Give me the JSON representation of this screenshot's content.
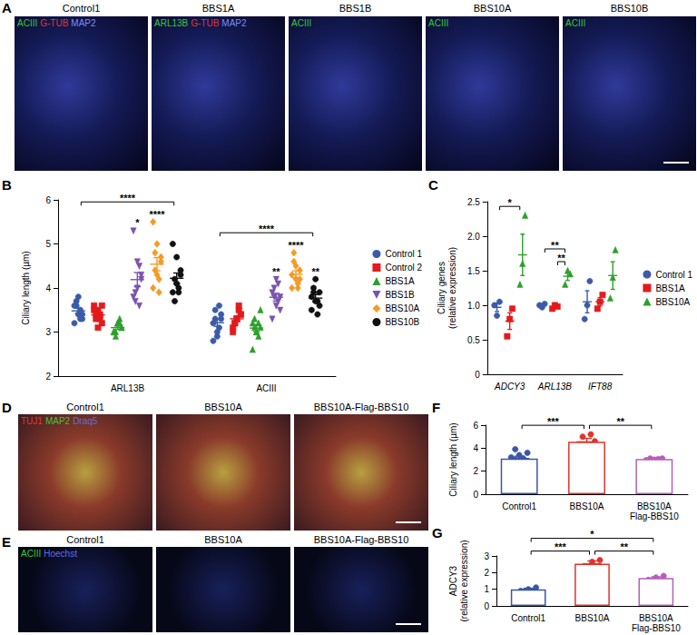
{
  "chart_data": [
    {
      "panel": "B",
      "type": "scatter",
      "categories": [
        "ARL13B",
        "ACIII"
      ],
      "y_label": "Ciliary length (µm)",
      "ylim": [
        2,
        6
      ],
      "yticks": [
        2,
        3,
        4,
        5,
        6
      ],
      "grid": false,
      "legend": "right",
      "series": [
        {
          "name": "Control 1",
          "color": "#3b5ba9",
          "marker": "circle",
          "values": [
            [
              3.6,
              3.4,
              3.3,
              3.7,
              3.5,
              3.2,
              3.8,
              3.4,
              3.6,
              3.3
            ],
            [
              2.8,
              3.0,
              3.3,
              3.5,
              3.1,
              3.2,
              2.9,
              3.4,
              3.3,
              3.6
            ]
          ],
          "mean": [
            3.48,
            3.21
          ],
          "sem": [
            0.06,
            0.08
          ]
        },
        {
          "name": "Control 2",
          "color": "#e41a1c",
          "marker": "square",
          "values": [
            [
              3.6,
              3.5,
              3.2,
              3.3,
              3.4,
              3.5,
              3.1,
              3.6,
              3.4,
              3.3
            ],
            [
              3.0,
              3.3,
              3.4,
              3.2,
              3.5,
              3.1,
              3.3,
              3.4,
              3.2,
              3.6
            ]
          ],
          "mean": [
            3.39,
            3.3
          ],
          "sem": [
            0.05,
            0.06
          ]
        },
        {
          "name": "BBS1A",
          "color": "#2ca02c",
          "marker": "triangle",
          "values": [
            [
              3.0,
              3.2,
              3.1,
              2.9,
              3.3,
              3.0,
              3.2,
              3.1,
              3.0,
              3.2
            ],
            [
              2.6,
              3.0,
              3.1,
              3.3,
              2.9,
              3.2,
              3.0,
              3.5,
              3.1,
              3.2
            ]
          ],
          "mean": [
            3.1,
            3.09
          ],
          "sem": [
            0.04,
            0.08
          ]
        },
        {
          "name": "BBS1B",
          "color": "#7b52ae",
          "marker": "triangle-down",
          "values": [
            [
              5.3,
              4.6,
              4.3,
              3.9,
              3.6,
              3.8,
              4.0,
              4.2,
              3.7,
              4.5
            ],
            [
              3.3,
              3.6,
              3.8,
              4.0,
              3.7,
              3.9,
              4.2,
              3.5,
              3.8,
              4.1
            ]
          ],
          "mean": [
            4.19,
            3.79
          ],
          "sem": [
            0.16,
            0.09
          ]
        },
        {
          "name": "BBS10A",
          "color": "#f59a23",
          "marker": "diamond",
          "values": [
            [
              5.5,
              5.0,
              4.7,
              4.4,
              4.2,
              4.0,
              4.3,
              4.6,
              4.8,
              3.9
            ],
            [
              4.0,
              4.2,
              4.4,
              4.6,
              4.1,
              4.3,
              4.5,
              4.2,
              4.8,
              4.0
            ]
          ],
          "mean": [
            4.54,
            4.31
          ],
          "sem": [
            0.15,
            0.08
          ]
        },
        {
          "name": "BBS10B",
          "color": "#111111",
          "marker": "circle",
          "values": [
            [
              5.0,
              4.7,
              4.4,
              4.2,
              4.0,
              3.9,
              4.1,
              4.3,
              3.7,
              3.9
            ],
            [
              3.5,
              3.7,
              3.9,
              4.0,
              3.4,
              3.8,
              4.2,
              3.6,
              3.9,
              3.7
            ]
          ],
          "mean": [
            4.22,
            3.77
          ],
          "sem": [
            0.12,
            0.08
          ]
        }
      ],
      "annotations": [
        {
          "text": "****",
          "group": "ARL13B",
          "from": "Control 1",
          "to": "BBS10B"
        },
        {
          "text": "****",
          "group": "ACIII",
          "from": "Control 1",
          "to": "BBS10B"
        },
        {
          "text": "*",
          "group": "ARL13B",
          "series": "BBS1B"
        },
        {
          "text": "****",
          "group": "ARL13B",
          "series": "BBS10A"
        },
        {
          "text": "**",
          "group": "ACIII",
          "series": "BBS1B"
        },
        {
          "text": "****",
          "group": "ACIII",
          "series": "BBS10A"
        },
        {
          "text": "**",
          "group": "ACIII",
          "series": "BBS10B"
        }
      ]
    },
    {
      "panel": "C",
      "type": "scatter",
      "categories": [
        "ADCY3",
        "ARL13B",
        "IFT88"
      ],
      "y_label": "Ciliary genes\n(relative expression)",
      "ylim": [
        0,
        2.5
      ],
      "yticks": [
        0,
        0.5,
        {
          "value": 1,
          "label": "1.0"
        },
        1.5,
        {
          "value": 2,
          "label": "2.0"
        },
        2.5
      ],
      "grid": false,
      "legend": "right",
      "series": [
        {
          "name": "Control 1",
          "color": "#3b5ba9",
          "marker": "circle",
          "values": [
            [
              1.0,
              0.85,
              1.05
            ],
            [
              1.0,
              0.97,
              1.02
            ],
            [
              0.8,
              1.0,
              1.35
            ]
          ],
          "mean": [
            0.97,
            1.0,
            1.05
          ],
          "sem": [
            0.06,
            0.01,
            0.16
          ]
        },
        {
          "name": "BBS1A",
          "color": "#e41a1c",
          "marker": "square",
          "values": [
            [
              0.55,
              0.8,
              0.95
            ],
            [
              0.95,
              1.0,
              0.98
            ],
            [
              0.95,
              1.05,
              1.15
            ]
          ],
          "mean": [
            0.77,
            0.98,
            1.05
          ],
          "sem": [
            0.12,
            0.01,
            0.06
          ]
        },
        {
          "name": "BBS10A",
          "color": "#2ca02c",
          "marker": "triangle",
          "values": [
            [
              1.3,
              1.6,
              2.3
            ],
            [
              1.3,
              1.5,
              1.45
            ],
            [
              1.1,
              1.4,
              1.8
            ]
          ],
          "mean": [
            1.73,
            1.42,
            1.43
          ],
          "sem": [
            0.3,
            0.06,
            0.2
          ]
        }
      ],
      "annotations": [
        {
          "text": "*",
          "group": "ADCY3",
          "from": "Control 1",
          "to": "BBS10A"
        },
        {
          "text": "**",
          "group": "ARL13B",
          "from": "Control 1",
          "to": "BBS10A"
        },
        {
          "text": "**",
          "group": "ARL13B",
          "from": "BBS1A",
          "to": "BBS10A"
        }
      ]
    },
    {
      "panel": "F",
      "type": "bar",
      "categories": [
        "Control1",
        "BBS10A",
        "BBS10A\nFlag-BBS10"
      ],
      "y_label": "Ciliary length (µm)",
      "values": [
        3.1,
        4.55,
        3.05
      ],
      "sem": [
        0.2,
        0.3,
        0.05
      ],
      "points": [
        [
          2.4,
          2.6,
          2.8,
          3.0,
          3.1,
          3.2,
          3.4,
          3.6,
          3.9
        ],
        [
          3.8,
          4.2,
          4.6,
          5.0,
          5.2
        ],
        [
          2.95,
          3.0,
          3.1,
          3.1,
          3.05
        ]
      ],
      "colors": [
        "#3a56a5",
        "#e0342a",
        "#b65fb8"
      ],
      "marker": "circle",
      "ylim": [
        0,
        6
      ],
      "yticks": [
        0,
        2,
        4,
        6
      ],
      "grid": false,
      "annotations": [
        {
          "text": "***",
          "from": "Control1",
          "to": "BBS10A"
        },
        {
          "text": "**",
          "from": "BBS10A",
          "to": "BBS10A\nFlag-BBS10"
        }
      ]
    },
    {
      "panel": "G",
      "type": "bar",
      "categories": [
        "Control1",
        "BBS10A",
        "BBS10A\nFlag-BBS10"
      ],
      "y_label": "ADCY3\n(relative expression)",
      "values": [
        1.0,
        2.53,
        1.68
      ],
      "sem": [
        0.06,
        0.17,
        0.07
      ],
      "points": [
        [
          0.9,
          1.0,
          1.1
        ],
        [
          2.2,
          2.65,
          2.75
        ],
        [
          1.55,
          1.7,
          1.8
        ]
      ],
      "colors": [
        "#3a56a5",
        "#e0342a",
        "#b65fb8"
      ],
      "marker": "circle",
      "ylim": [
        0,
        3
      ],
      "yticks": [
        0,
        1,
        2,
        3
      ],
      "grid": false,
      "annotations": [
        {
          "text": "***",
          "from": "Control1",
          "to": "BBS10A"
        },
        {
          "text": "*",
          "from": "Control1",
          "to": "BBS10A\nFlag-BBS10"
        },
        {
          "text": "**",
          "from": "BBS10A",
          "to": "BBS10A\nFlag-BBS10"
        }
      ]
    }
  ],
  "micrographs": [
    {
      "panel": "A",
      "images": [
        {
          "title": "Control1",
          "stains": [
            {
              "text": "ACIII",
              "color": "#33cc33"
            },
            {
              "text": "G-TUB",
              "color": "#e8332b"
            },
            {
              "text": "MAP2",
              "color": "#7a8cf5"
            }
          ]
        },
        {
          "title": "BBS1A",
          "stains": [
            {
              "text": "ARL13B",
              "color": "#33cc33"
            },
            {
              "text": "G-TUB",
              "color": "#e8332b"
            },
            {
              "text": "MAP2",
              "color": "#7a8cf5"
            }
          ]
        },
        {
          "title": "BBS1B",
          "stains": [
            {
              "text": "ACIII",
              "color": "#33cc33"
            }
          ]
        },
        {
          "title": "BBS10A",
          "stains": [
            {
              "text": "ACIII",
              "color": "#33cc33"
            }
          ]
        },
        {
          "title": "BBS10B",
          "stains": [
            {
              "text": "ACIII",
              "color": "#33cc33"
            }
          ]
        }
      ]
    },
    {
      "panel": "D",
      "images": [
        {
          "title": "Control1",
          "stains": []
        },
        {
          "title": "BBS10A",
          "stains": []
        },
        {
          "title": "BBS10A-Flag-BBS10",
          "stains": []
        }
      ],
      "stains": [
        {
          "text": "TUJ1",
          "color": "#e23b2b"
        },
        {
          "text": "MAP2",
          "color": "#3fc43f"
        },
        {
          "text": "Draq5",
          "color": "#5b6ee8"
        }
      ]
    },
    {
      "panel": "E",
      "images": [
        {
          "title": "Control1",
          "stains": []
        },
        {
          "title": "BBS10A",
          "stains": []
        },
        {
          "title": "BBS10A-Flag-BBS10",
          "stains": []
        }
      ],
      "stains": [
        {
          "text": "ACIII",
          "color": "#33cc33"
        },
        {
          "text": "Hoechst",
          "color": "#5b6ee8"
        }
      ]
    }
  ]
}
